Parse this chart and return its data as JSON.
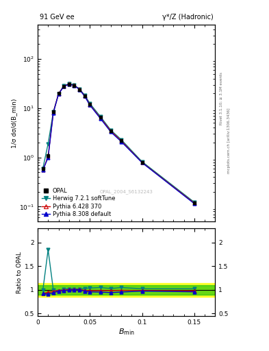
{
  "title_left": "91 GeV ee",
  "title_right": "γ*/Z (Hadronic)",
  "ylabel_main": "1/σ dσ/d(B_min)",
  "ylabel_ratio": "Ratio to OPAL",
  "right_label_top": "Rivet 3.1.10; ≥ 3.1M events",
  "right_label_bottom": "mcplots.cern.ch [arXiv:1306.3436]",
  "watermark": "OPAL_2004_S6132243",
  "bmin_x": [
    0.005,
    0.01,
    0.015,
    0.02,
    0.025,
    0.03,
    0.035,
    0.04,
    0.045,
    0.05,
    0.06,
    0.07,
    0.08,
    0.1,
    0.15
  ],
  "opal_y": [
    0.6,
    1.1,
    8.5,
    20.0,
    28.0,
    31.0,
    29.0,
    24.0,
    18.0,
    12.0,
    6.5,
    3.5,
    2.2,
    0.8,
    0.12
  ],
  "opal_yerr": [
    0.06,
    0.15,
    0.5,
    0.8,
    0.9,
    1.0,
    0.9,
    0.8,
    0.6,
    0.5,
    0.3,
    0.2,
    0.12,
    0.05,
    0.01
  ],
  "herwig_y": [
    0.6,
    1.9,
    8.5,
    19.5,
    28.5,
    31.5,
    29.5,
    24.5,
    18.5,
    12.5,
    6.8,
    3.6,
    2.3,
    0.82,
    0.123
  ],
  "pythia6_y": [
    0.55,
    1.05,
    8.2,
    19.8,
    27.8,
    31.2,
    29.2,
    24.2,
    17.8,
    11.8,
    6.4,
    3.45,
    2.18,
    0.79,
    0.118
  ],
  "pythia8_y": [
    0.55,
    1.0,
    8.0,
    19.5,
    27.5,
    30.8,
    29.0,
    24.0,
    17.5,
    11.5,
    6.2,
    3.3,
    2.1,
    0.78,
    0.115
  ],
  "herwig_ratio": [
    1.0,
    1.85,
    1.0,
    0.975,
    1.02,
    1.02,
    1.02,
    1.02,
    1.03,
    1.04,
    1.05,
    1.03,
    1.05,
    1.025,
    1.025
  ],
  "pythia6_ratio": [
    0.92,
    0.95,
    0.965,
    0.99,
    0.993,
    1.007,
    1.007,
    1.008,
    0.99,
    0.983,
    0.985,
    0.986,
    0.99,
    0.988,
    0.98
  ],
  "pythia8_ratio": [
    0.92,
    0.91,
    0.94,
    0.975,
    0.982,
    0.994,
    1.0,
    1.0,
    0.972,
    0.958,
    0.954,
    0.943,
    0.955,
    0.975,
    0.96
  ],
  "opal_color": "#000000",
  "herwig_color": "#008080",
  "pythia6_color": "#cc0000",
  "pythia8_color": "#0000cc",
  "band_yellow": [
    0.85,
    1.15
  ],
  "band_green": [
    0.9,
    1.1
  ],
  "xlim": [
    0.0,
    0.17
  ],
  "ylim_main": [
    0.05,
    500
  ],
  "ylim_ratio": [
    0.45,
    2.3
  ],
  "xticks": [
    0.0,
    0.05,
    0.1,
    0.15
  ],
  "xticklabels": [
    "0",
    "0.05",
    "0.1",
    "0.15"
  ]
}
